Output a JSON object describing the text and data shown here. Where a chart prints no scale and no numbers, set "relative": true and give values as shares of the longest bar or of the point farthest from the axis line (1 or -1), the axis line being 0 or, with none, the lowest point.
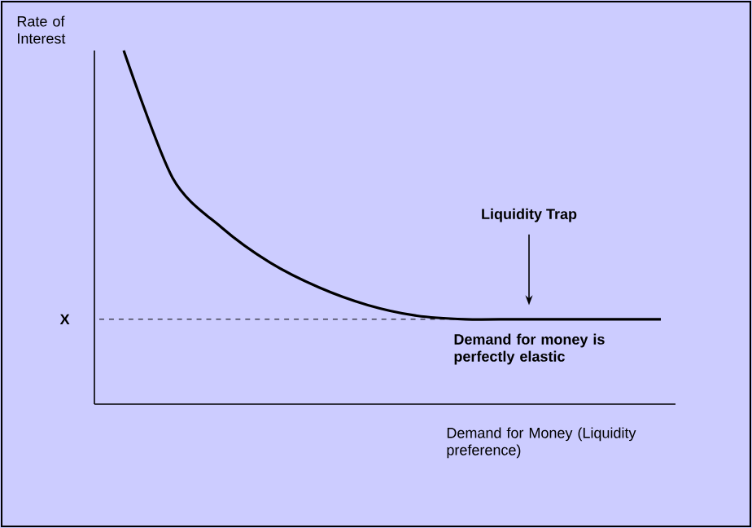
{
  "chart_data": {
    "type": "line",
    "relative": true,
    "ylabel": "Rate of Interest",
    "xlabel": "Demand for Money (Liquidity preference)",
    "categories": [
      null,
      null,
      null,
      null,
      null,
      null,
      null,
      null,
      null,
      null,
      null,
      null
    ],
    "series": [
      {
        "color": "#000000",
        "values": [
          1,
          0.64,
          0.5,
          0.4,
          0.33,
          0.28,
          0.25,
          0.24,
          0.24,
          0.24,
          0.24,
          0.24
        ]
      }
    ],
    "ref_lines": [
      {
        "axis": "y",
        "value": 0.24,
        "label": "X",
        "line_style": "dashed",
        "color": "#000000"
      }
    ],
    "annotations": [
      "Liquidity Trap",
      "Demand for money is perfectly elastic"
    ],
    "marker": "none",
    "line_style": "solid"
  }
}
